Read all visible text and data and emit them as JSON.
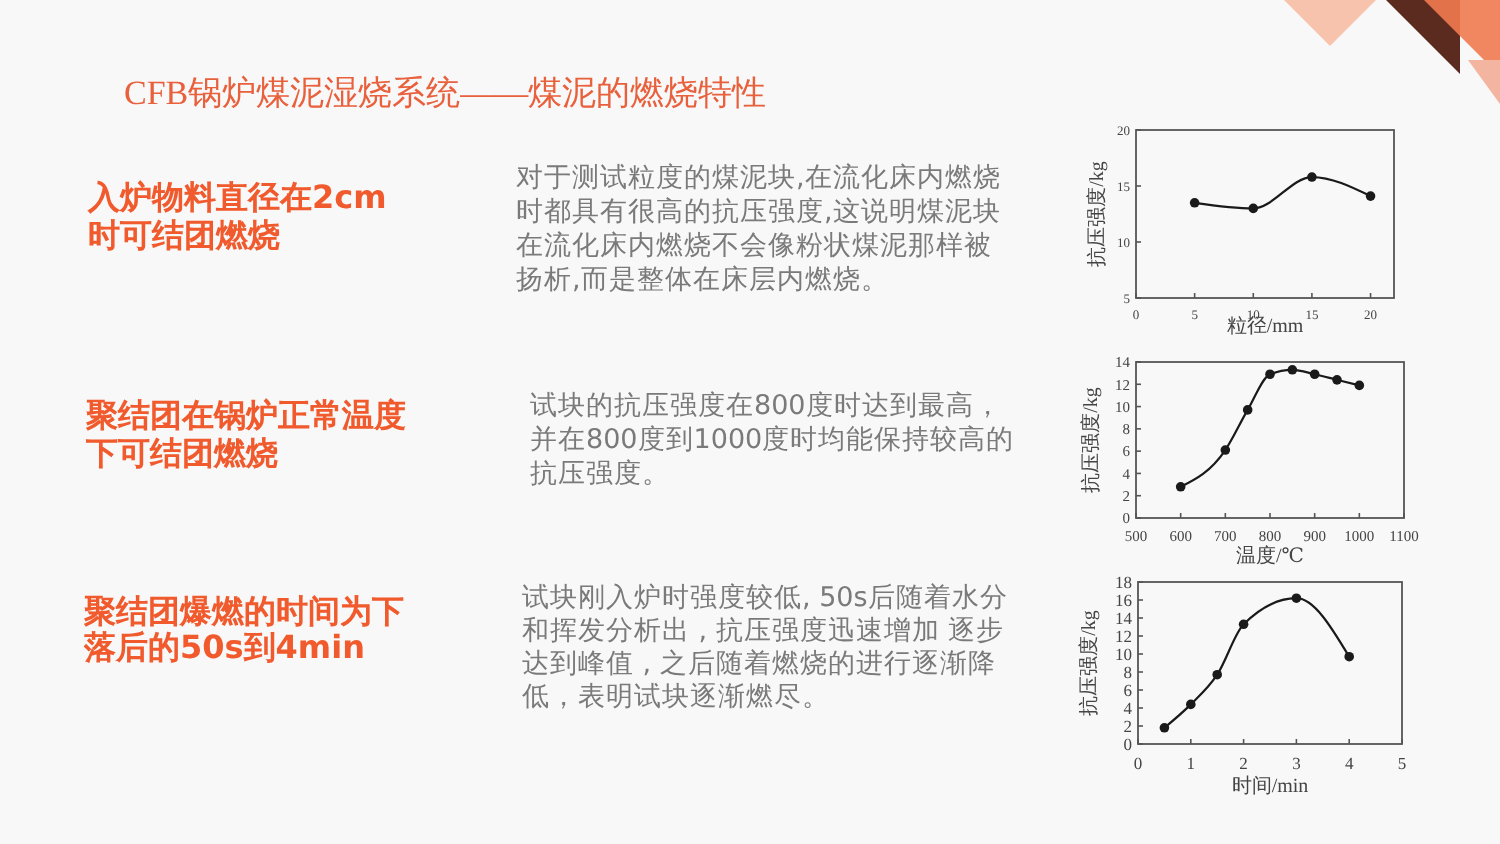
{
  "chart_data": [
    {
      "type": "other",
      "title": "CFB锅炉煤泥湿烧系统——煤泥的燃烧特性"
    },
    {
      "type": "other",
      "title": "入炉物料直径在2cm时可结团燃烧",
      "annotations": [
        "对于测试粒度的煤泥块,在流化床内燃烧时都具有很高的抗压强度,这说明煤泥块在流化床内燃烧不会像粉状煤泥那样被扬析,而是整体在床层内燃烧。"
      ]
    },
    {
      "type": "line",
      "x": [
        5,
        10,
        15,
        20
      ],
      "values": [
        13.5,
        13.0,
        15.8,
        14.1
      ],
      "color": "#1a1a1a",
      "marker": "circle",
      "xlim": [
        0,
        22
      ],
      "xticks": [
        0,
        5,
        10,
        15,
        20
      ],
      "ylim": [
        5,
        20
      ],
      "yticks": [
        5,
        10,
        15,
        20
      ],
      "xlabel": "粒径/mm",
      "ylabel": "抗压强度/kg"
    },
    {
      "type": "other",
      "title": "聚结团在锅炉正常温度下可结团燃烧",
      "annotations": [
        "试块的抗压强度在800度时达到最高，并在800度到1000度时均能保持较高的抗压强度。"
      ]
    },
    {
      "type": "line",
      "x": [
        600,
        700,
        750,
        800,
        850,
        900,
        950,
        1000
      ],
      "values": [
        2.8,
        6.1,
        9.7,
        12.9,
        13.3,
        12.9,
        12.4,
        11.9
      ],
      "color": "#1a1a1a",
      "marker": "circle",
      "xlim": [
        500,
        1100
      ],
      "xticks": [
        500,
        600,
        700,
        800,
        900,
        1000,
        1100
      ],
      "ylim": [
        0,
        14
      ],
      "yticks": [
        0,
        2,
        4,
        6,
        8,
        10,
        12,
        14
      ],
      "xlabel": "温度/℃",
      "ylabel": "抗压强度/kg"
    },
    {
      "type": "other",
      "title": "聚结团爆燃的时间为下落后的50s到4min",
      "annotations": [
        "试块刚入炉时强度较低, 50s后随着水分和挥发分析出 , 抗压强度迅速增加 逐步达到峰值 , 之后随着燃烧的进行逐渐降低，表明试块逐渐燃尽。"
      ]
    },
    {
      "type": "line",
      "x": [
        0.5,
        1,
        1.5,
        2,
        3,
        4
      ],
      "values": [
        1.8,
        4.4,
        7.7,
        13.3,
        16.2,
        9.7
      ],
      "color": "#1a1a1a",
      "marker": "circle",
      "xlim": [
        0,
        5
      ],
      "xticks": [
        0,
        1,
        2,
        3,
        4,
        5
      ],
      "ylim": [
        0,
        18
      ],
      "yticks": [
        0,
        2,
        4,
        6,
        8,
        10,
        12,
        14,
        16,
        18
      ],
      "xlabel": "时间/min",
      "ylabel": "抗压强度/kg"
    }
  ]
}
